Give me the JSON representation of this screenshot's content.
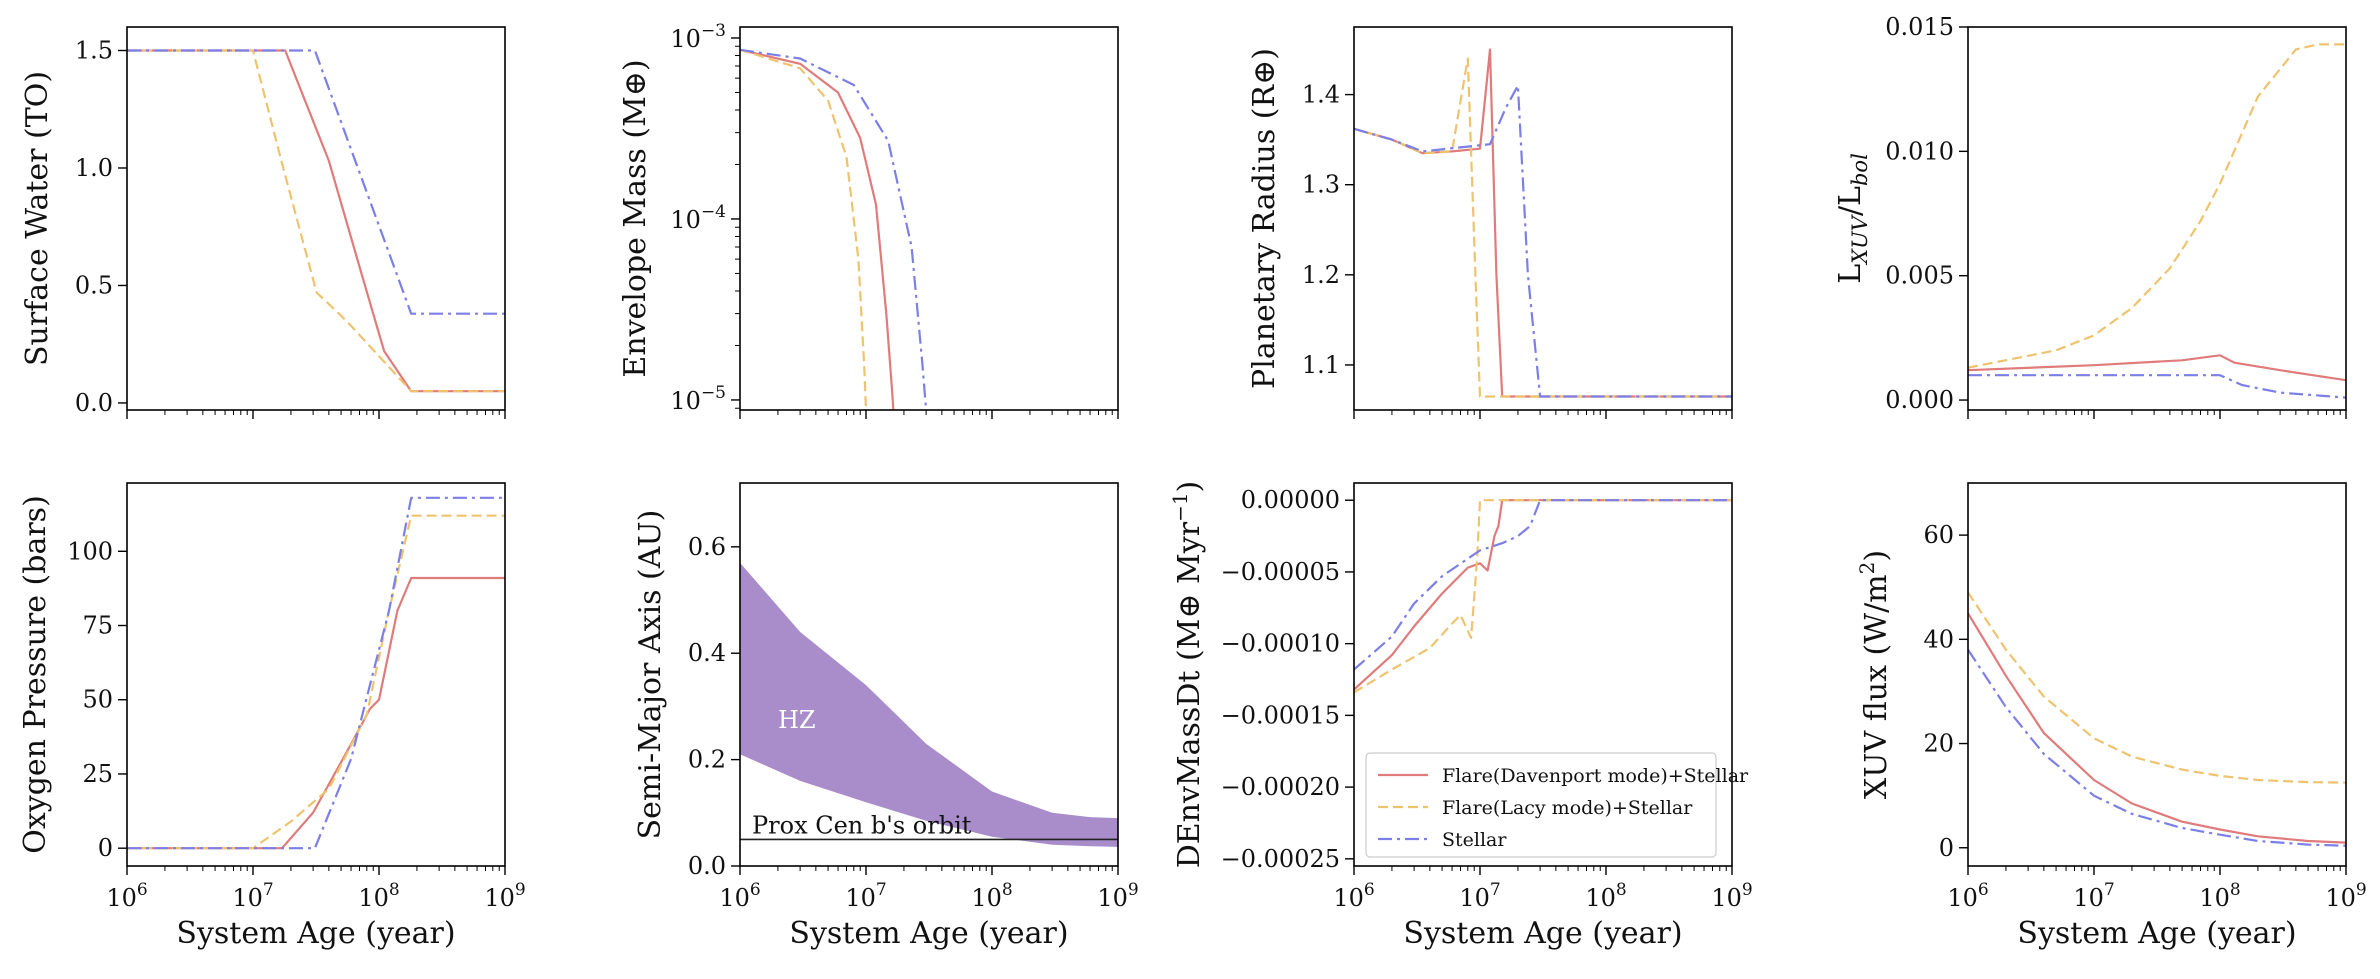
{
  "colors": {
    "flare_davenport": "#e07b7b",
    "flare_lacy": "#efc36e",
    "stellar": "#7b7fe6",
    "hz_fill": "#a98dcb",
    "orbit_line": "#222222",
    "axes": "#000000"
  },
  "x_axis": {
    "scale": "log",
    "xlim": [
      1000000,
      1000000000
    ],
    "ticks": [
      1000000,
      10000000,
      100000000,
      1000000000
    ],
    "tick_base": "10",
    "tick_exponents": [
      "6",
      "7",
      "8",
      "9"
    ],
    "label": "System Age (year)"
  },
  "legend": {
    "placement": "lower-left",
    "entries": [
      "Flare(Davenport mode)+Stellar",
      "Flare(Lacy mode)+Stellar",
      "Stellar"
    ]
  },
  "chart_data": [
    {
      "id": "surface_water",
      "type": "line",
      "ylabel": "Surface Water (TO)",
      "yscale": "linear",
      "ylim": [
        -0.03,
        1.6
      ],
      "yticks": [
        0.0,
        0.5,
        1.0,
        1.5
      ],
      "ytick_labels": [
        "0.0",
        "0.5",
        "1.0",
        "1.5"
      ],
      "series": [
        {
          "key": "flare_davenport",
          "style": "solid",
          "x": [
            1000000.0,
            18000000.0,
            40000000.0,
            70000000.0,
            110000000.0,
            180000000.0,
            1000000000.0
          ],
          "y": [
            1.5,
            1.5,
            1.03,
            0.58,
            0.22,
            0.05,
            0.05
          ]
        },
        {
          "key": "flare_lacy",
          "style": "dashed",
          "x": [
            1000000.0,
            10000000.0,
            17000000.0,
            32000000.0,
            55000000.0,
            180000000.0,
            1000000000.0
          ],
          "y": [
            1.5,
            1.5,
            1.02,
            0.47,
            0.35,
            0.05,
            0.05
          ]
        },
        {
          "key": "stellar",
          "style": "dashdot",
          "x": [
            1000000.0,
            31000000.0,
            180000000.0,
            1000000000.0
          ],
          "y": [
            1.5,
            1.5,
            0.38,
            0.38
          ]
        }
      ]
    },
    {
      "id": "envelope_mass",
      "type": "line",
      "ylabel": "Envelope Mass (M⊕)",
      "yscale": "log",
      "ylim": [
        8.8e-06,
        0.00115
      ],
      "yticks": [
        1e-05,
        0.0001,
        0.001
      ],
      "ytick_base": "10",
      "ytick_exponents": [
        "−5",
        "−4",
        "−3"
      ],
      "series": [
        {
          "key": "flare_davenport",
          "style": "solid",
          "x": [
            1000000.0,
            3000000.0,
            6000000.0,
            9000000.0,
            12000000.0,
            14500000.0,
            16000000.0,
            16500000.0
          ],
          "y": [
            0.00086,
            0.00072,
            0.0005,
            0.00028,
            0.00012,
            3e-05,
            1.2e-05,
            8.8e-06
          ]
        },
        {
          "key": "flare_lacy",
          "style": "dashed",
          "x": [
            1000000.0,
            3000000.0,
            5000000.0,
            7000000.0,
            8700000.0,
            9700000.0,
            10000000.0
          ],
          "y": [
            0.00086,
            0.00068,
            0.00045,
            0.00022,
            6e-05,
            1.5e-05,
            8.8e-06
          ]
        },
        {
          "key": "stellar",
          "style": "dashdot",
          "x": [
            1000000.0,
            3000000.0,
            8000000.0,
            15000000.0,
            23000000.0,
            28000000.0,
            30000000.0
          ],
          "y": [
            0.00086,
            0.00077,
            0.00055,
            0.00027,
            7e-05,
            1.6e-05,
            8.8e-06
          ]
        }
      ]
    },
    {
      "id": "planetary_radius",
      "type": "line",
      "ylabel": "Planetary Radius (R⊕)",
      "yscale": "linear",
      "ylim": [
        1.05,
        1.475
      ],
      "yticks": [
        1.1,
        1.2,
        1.3,
        1.4
      ],
      "ytick_labels": [
        "1.1",
        "1.2",
        "1.3",
        "1.4"
      ],
      "series": [
        {
          "key": "flare_davenport",
          "style": "solid",
          "x": [
            1000000.0,
            2000000.0,
            3500000.0,
            6000000.0,
            10000000.0,
            12000000.0,
            13500000.0,
            15000000.0,
            1000000000.0
          ],
          "y": [
            1.362,
            1.35,
            1.335,
            1.337,
            1.34,
            1.45,
            1.2,
            1.065,
            1.065
          ]
        },
        {
          "key": "flare_lacy",
          "style": "dashed",
          "x": [
            1000000.0,
            2000000.0,
            3500000.0,
            6000000.0,
            8000000.0,
            9200000.0,
            10000000.0,
            1000000000.0
          ],
          "y": [
            1.362,
            1.35,
            1.335,
            1.337,
            1.44,
            1.2,
            1.065,
            1.065
          ]
        },
        {
          "key": "stellar",
          "style": "dashdot",
          "x": [
            1000000.0,
            2000000.0,
            3500000.0,
            12000000.0,
            16000000.0,
            20000000.0,
            24000000.0,
            30000000.0,
            1000000000.0
          ],
          "y": [
            1.362,
            1.35,
            1.337,
            1.345,
            1.385,
            1.41,
            1.2,
            1.065,
            1.065
          ]
        }
      ]
    },
    {
      "id": "lxuv_lbol",
      "type": "line",
      "ylabel_base": "L",
      "ylabel_sub1": "XUV",
      "ylabel_mid": "/L",
      "ylabel_sub2": "bol",
      "yscale": "linear",
      "ylim": [
        -0.0004,
        0.015
      ],
      "yticks": [
        0.0,
        0.005,
        0.01,
        0.015
      ],
      "ytick_labels": [
        "0.000",
        "0.005",
        "0.010",
        "0.015"
      ],
      "series": [
        {
          "key": "flare_davenport",
          "style": "solid",
          "x": [
            1000000.0,
            10000000.0,
            50000000.0,
            100000000.0,
            130000000.0,
            300000000.0,
            1000000000.0
          ],
          "y": [
            0.0012,
            0.0014,
            0.0016,
            0.0018,
            0.0015,
            0.0012,
            0.0008
          ]
        },
        {
          "key": "flare_lacy",
          "style": "dashed",
          "x": [
            1000000.0,
            5000000.0,
            10000000.0,
            20000000.0,
            40000000.0,
            70000000.0,
            100000000.0,
            200000000.0,
            400000000.0,
            600000000.0,
            1000000000.0
          ],
          "y": [
            0.0013,
            0.002,
            0.0026,
            0.0037,
            0.0053,
            0.0072,
            0.0087,
            0.0122,
            0.0141,
            0.0143,
            0.0143
          ]
        },
        {
          "key": "stellar",
          "style": "dashdot",
          "x": [
            1000000.0,
            10000000.0,
            100000000.0,
            150000000.0,
            300000000.0,
            1000000000.0
          ],
          "y": [
            0.001,
            0.001,
            0.001,
            0.0006,
            0.0003,
            0.0001
          ]
        }
      ]
    },
    {
      "id": "oxygen_pressure",
      "type": "line",
      "ylabel": "Oxygen Pressure (bars)",
      "yscale": "linear",
      "ylim": [
        -6,
        123
      ],
      "yticks": [
        0,
        25,
        50,
        75,
        100
      ],
      "ytick_labels": [
        "0",
        "25",
        "50",
        "75",
        "100"
      ],
      "series": [
        {
          "key": "flare_davenport",
          "style": "solid",
          "x": [
            1000000.0,
            17000000.0,
            30000000.0,
            60000000.0,
            85000000.0,
            100000000.0,
            140000000.0,
            180000000.0,
            1000000000.0
          ],
          "y": [
            0,
            0,
            12,
            35,
            47,
            50,
            80,
            91,
            91
          ]
        },
        {
          "key": "flare_lacy",
          "style": "dashed",
          "x": [
            1000000.0,
            10000000.0,
            20000000.0,
            40000000.0,
            80000000.0,
            120000000.0,
            180000000.0,
            1000000000.0
          ],
          "y": [
            0,
            0,
            9,
            20,
            45,
            80,
            112,
            112
          ]
        },
        {
          "key": "stellar",
          "style": "dashdot",
          "x": [
            1000000.0,
            31000000.0,
            60000000.0,
            120000000.0,
            180000000.0,
            1000000000.0
          ],
          "y": [
            0,
            0,
            30,
            80,
            118,
            118
          ]
        }
      ]
    },
    {
      "id": "semi_major_axis",
      "type": "area",
      "ylabel": "Semi-Major Axis (AU)",
      "yscale": "linear",
      "ylim": [
        0.0,
        0.72
      ],
      "yticks": [
        0.0,
        0.2,
        0.4,
        0.6
      ],
      "ytick_labels": [
        "0.0",
        "0.2",
        "0.4",
        "0.6"
      ],
      "band": {
        "label": "HZ",
        "x": [
          1000000.0,
          3000000.0,
          10000000.0,
          30000000.0,
          100000000.0,
          300000000.0,
          600000000.0,
          1000000000.0
        ],
        "upper": [
          0.57,
          0.44,
          0.34,
          0.23,
          0.14,
          0.1,
          0.092,
          0.09
        ],
        "lower": [
          0.21,
          0.16,
          0.12,
          0.085,
          0.055,
          0.04,
          0.037,
          0.036
        ]
      },
      "hline": {
        "label": "Prox Cen b's orbit",
        "y": 0.05
      }
    },
    {
      "id": "denv_mass_dt",
      "type": "line",
      "ylabel_main": "DEnvMassDt (M⊕ Myr",
      "ylabel_sup": "−1",
      "ylabel_end": ")",
      "yscale": "linear",
      "ylim": [
        -0.000255,
        1.2e-05
      ],
      "yticks": [
        -0.00025,
        -0.0002,
        -0.00015,
        -0.0001,
        -5e-05,
        0.0
      ],
      "ytick_labels": [
        "−0.00025",
        "−0.00020",
        "−0.00015",
        "−0.00010",
        "−0.00005",
        "0.00000"
      ],
      "series": [
        {
          "key": "flare_davenport",
          "style": "solid",
          "x": [
            1000000.0,
            2000000.0,
            3000000.0,
            5000000.0,
            8000000.0,
            10000000.0,
            11500000.0,
            13000000.0,
            14000000.0,
            15000000.0,
            1000000000.0
          ],
          "y": [
            -0.000132,
            -0.000108,
            -8.8e-05,
            -6.5e-05,
            -4.7e-05,
            -4.4e-05,
            -4.9e-05,
            -2.5e-05,
            -1.8e-05,
            0.0,
            0.0
          ]
        },
        {
          "key": "flare_lacy",
          "style": "dashed",
          "x": [
            1000000.0,
            2000000.0,
            4000000.0,
            6000000.0,
            7000000.0,
            8500000.0,
            9500000.0,
            10000000.0,
            1000000000.0
          ],
          "y": [
            -0.000134,
            -0.000118,
            -0.000103,
            -8.6e-05,
            -8e-05,
            -9.6e-05,
            -4e-05,
            0.0,
            0.0
          ]
        },
        {
          "key": "stellar",
          "style": "dashdot",
          "x": [
            1000000.0,
            2000000.0,
            3000000.0,
            5000000.0,
            10000000.0,
            15000000.0,
            20000000.0,
            25000000.0,
            30000000.0,
            1000000000.0
          ],
          "y": [
            -0.000118,
            -9.5e-05,
            -7.2e-05,
            -5.3e-05,
            -3.5e-05,
            -3e-05,
            -2.5e-05,
            -1.8e-05,
            0.0,
            0.0
          ]
        }
      ]
    },
    {
      "id": "xuv_flux",
      "type": "line",
      "ylabel_main": "XUV flux (W/m",
      "ylabel_sup": "2",
      "ylabel_end": ")",
      "yscale": "linear",
      "ylim": [
        -3.5,
        70
      ],
      "yticks": [
        0,
        20,
        40,
        60
      ],
      "ytick_labels": [
        "0",
        "20",
        "40",
        "60"
      ],
      "series": [
        {
          "key": "flare_davenport",
          "style": "solid",
          "x": [
            1000000.0,
            2000000.0,
            4000000.0,
            10000000.0,
            20000000.0,
            50000000.0,
            100000000.0,
            200000000.0,
            500000000.0,
            1000000000.0
          ],
          "y": [
            45,
            33,
            22,
            13,
            8.5,
            5,
            3.5,
            2.2,
            1.3,
            1.0
          ]
        },
        {
          "key": "flare_lacy",
          "style": "dashed",
          "x": [
            1000000.0,
            2000000.0,
            4000000.0,
            10000000.0,
            20000000.0,
            50000000.0,
            100000000.0,
            200000000.0,
            500000000.0,
            1000000000.0
          ],
          "y": [
            49,
            38,
            29,
            21,
            17.5,
            15,
            13.8,
            13,
            12.6,
            12.5
          ]
        },
        {
          "key": "stellar",
          "style": "dashdot",
          "x": [
            1000000.0,
            2000000.0,
            4000000.0,
            10000000.0,
            20000000.0,
            50000000.0,
            100000000.0,
            200000000.0,
            500000000.0,
            1000000000.0
          ],
          "y": [
            38,
            27,
            18,
            10,
            6.5,
            3.8,
            2.5,
            1.3,
            0.6,
            0.4
          ]
        }
      ]
    }
  ]
}
